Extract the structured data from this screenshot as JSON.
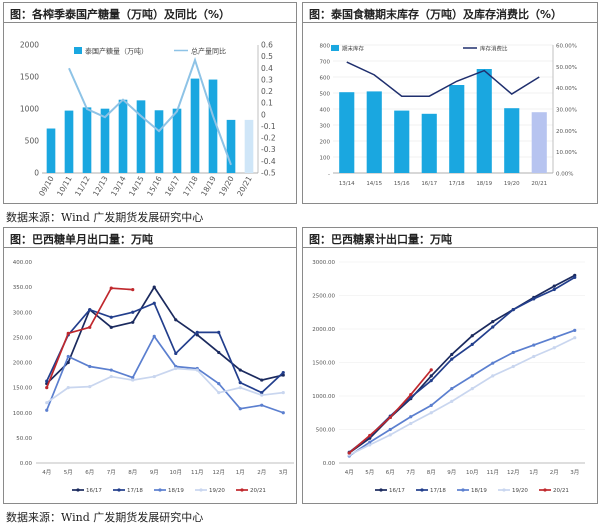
{
  "source_text": "数据来源：Wind 广发期货发展研究中心",
  "chart_data": [
    {
      "type": "bar",
      "title": "图：各榨季泰国产糖量（万吨）及同比（%）",
      "categories": [
        "09/10",
        "10/11",
        "11/12",
        "12/13",
        "13/14",
        "14/15",
        "15/16",
        "16/17",
        "17/18",
        "18/19",
        "19/20",
        "20/21"
      ],
      "series": [
        {
          "name": "泰国产糖量（万吨）",
          "type": "bar",
          "axis": "left",
          "color": "#1aa7e0",
          "values": [
            695,
            975,
            1025,
            1005,
            1145,
            1135,
            980,
            1005,
            1475,
            1460,
            830,
            830
          ],
          "forecast_index": 11,
          "forecast_color": "#cfe6f8"
        },
        {
          "name": "总产量同比",
          "type": "line",
          "axis": "right",
          "color": "#8ec3e6",
          "values": [
            null,
            0.4,
            0.05,
            -0.02,
            0.13,
            -0.01,
            -0.14,
            0.03,
            0.47,
            -0.01,
            -0.43,
            null
          ]
        }
      ],
      "ylim_left": [
        0,
        2000
      ],
      "yticks_left": [
        "0",
        "500",
        "1000",
        "1500",
        "2000"
      ],
      "ylim_right": [
        -0.5,
        0.6
      ],
      "yticks_right": [
        "0.6",
        "0.5",
        "0.4",
        "0.3",
        "0.2",
        "0.1",
        "0",
        "-0.1",
        "-0.2",
        "-0.3",
        "-0.4",
        "-0.5"
      ],
      "legend": "top-center"
    },
    {
      "type": "bar",
      "title": "图：泰国食糖期末库存（万吨）及库存消费比（%）",
      "categories": [
        "13/14",
        "14/15",
        "15/16",
        "16/17",
        "17/18",
        "18/19",
        "19/20",
        "20/21"
      ],
      "series": [
        {
          "name": "期末库存",
          "type": "bar",
          "axis": "left",
          "color": "#1aa7e0",
          "values": [
            505,
            510,
            390,
            370,
            550,
            650,
            405,
            380
          ],
          "forecast_index": 7,
          "forecast_color": "#b7c4f0"
        },
        {
          "name": "库存消费比",
          "type": "line",
          "axis": "right",
          "color": "#1f2f6e",
          "values": [
            0.52,
            0.46,
            0.36,
            0.36,
            0.43,
            0.48,
            0.37,
            0.45
          ]
        }
      ],
      "ylim_left": [
        0,
        800
      ],
      "yticks_left": [
        "-",
        "100",
        "200",
        "300",
        "400",
        "500",
        "600",
        "700",
        "800"
      ],
      "ylim_right": [
        0,
        0.6
      ],
      "yticks_right": [
        "0.00%",
        "10.00%",
        "20.00%",
        "30.00%",
        "40.00%",
        "50.00%",
        "60.00%"
      ],
      "legend": "top-left"
    },
    {
      "type": "line",
      "title": "图：巴西糖单月出口量：万吨",
      "categories": [
        "4月",
        "5月",
        "6月",
        "7月",
        "8月",
        "9月",
        "10月",
        "11月",
        "12月",
        "1月",
        "2月",
        "3月"
      ],
      "ylim": [
        0,
        400
      ],
      "yticks": [
        "0.00",
        "50.00",
        "100.00",
        "150.00",
        "200.00",
        "250.00",
        "300.00",
        "350.00",
        "400.00"
      ],
      "series": [
        {
          "name": "16/17",
          "color": "#1b2a5e",
          "values": [
            158,
            200,
            305,
            270,
            280,
            350,
            285,
            255,
            220,
            185,
            165,
            175
          ]
        },
        {
          "name": "17/18",
          "color": "#223e8c",
          "values": [
            163,
            255,
            305,
            290,
            300,
            318,
            218,
            260,
            260,
            160,
            140,
            180
          ]
        },
        {
          "name": "18/19",
          "color": "#5b7fcf",
          "values": [
            105,
            212,
            192,
            185,
            170,
            252,
            192,
            188,
            158,
            108,
            115,
            100
          ]
        },
        {
          "name": "19/20",
          "color": "#c9d6ef",
          "values": [
            120,
            150,
            152,
            172,
            165,
            172,
            188,
            185,
            140,
            150,
            135,
            140
          ]
        },
        {
          "name": "20/21",
          "color": "#c0282d",
          "values": [
            150,
            258,
            270,
            348,
            345,
            null,
            null,
            null,
            null,
            null,
            null,
            null
          ]
        }
      ],
      "legend": "bottom"
    },
    {
      "type": "line",
      "title": "图：巴西糖累计出口量：万吨",
      "categories": [
        "4月",
        "5月",
        "6月",
        "7月",
        "8月",
        "9月",
        "10月",
        "11月",
        "12月",
        "1月",
        "2月",
        "3月"
      ],
      "ylim": [
        0,
        3000
      ],
      "yticks": [
        "0.00",
        "500.00",
        "1000.00",
        "1500.00",
        "2000.00",
        "2500.00",
        "3000.00"
      ],
      "series": [
        {
          "name": "16/17",
          "color": "#1b2a5e",
          "values": [
            150,
            370,
            680,
            960,
            1300,
            1620,
            1900,
            2110,
            2290,
            2470,
            2640,
            2800
          ]
        },
        {
          "name": "17/18",
          "color": "#223e8c",
          "values": [
            160,
            400,
            700,
            980,
            1230,
            1550,
            1770,
            2030,
            2290,
            2450,
            2590,
            2770
          ]
        },
        {
          "name": "18/19",
          "color": "#5b7fcf",
          "values": [
            105,
            310,
            500,
            690,
            860,
            1110,
            1300,
            1490,
            1650,
            1760,
            1870,
            1980
          ]
        },
        {
          "name": "19/20",
          "color": "#c9d6ef",
          "values": [
            120,
            270,
            420,
            590,
            750,
            920,
            1110,
            1300,
            1440,
            1590,
            1720,
            1870
          ]
        },
        {
          "name": "20/21",
          "color": "#c0282d",
          "values": [
            150,
            410,
            680,
            1020,
            1390,
            null,
            null,
            null,
            null,
            null,
            null,
            null
          ]
        }
      ],
      "legend": "bottom"
    }
  ]
}
